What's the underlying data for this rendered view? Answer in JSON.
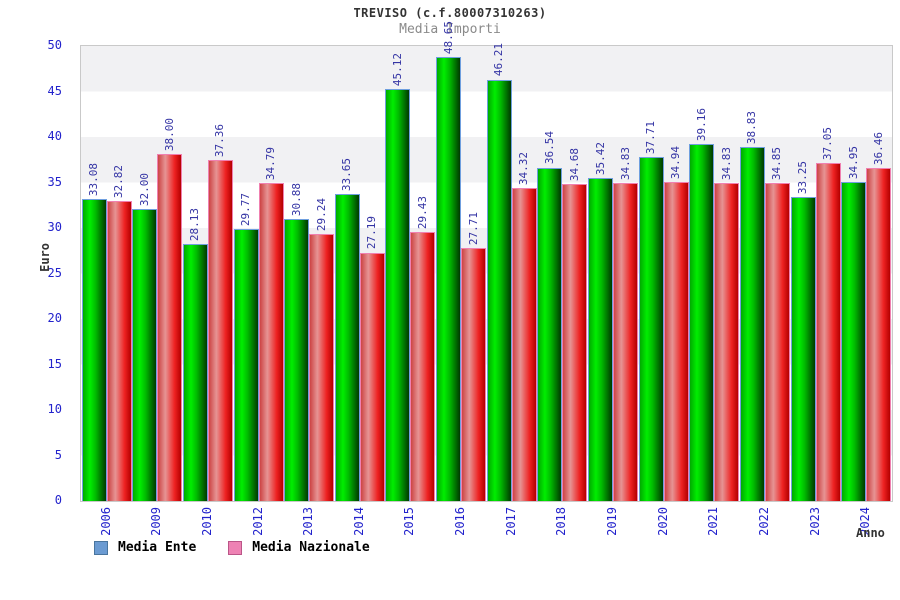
{
  "header": {
    "title": "TREVISO (c.f.80007310263)",
    "subtitle": "Media Importi"
  },
  "axes": {
    "y_label": "Euro",
    "x_label": "Anno",
    "y_ticks": [
      0,
      5,
      10,
      15,
      20,
      25,
      30,
      35,
      40,
      45,
      50
    ]
  },
  "legend": {
    "items": [
      {
        "label": "Media Ente",
        "swatch_fill": "#6b9bd2",
        "swatch_border": "#49759e"
      },
      {
        "label": "Media Nazionale",
        "swatch_fill": "#ee82b4",
        "swatch_border": "#bb5588"
      }
    ]
  },
  "colors": {
    "tick_label": "#2323cc",
    "value_label": "#3434a4",
    "band_gray": "#f1f1f3",
    "band_white": "#ffffff",
    "ente_border": "#6f9fdf",
    "naz_border": "#f080b0"
  },
  "chart_data": {
    "type": "bar",
    "title": "TREVISO (c.f.80007310263)",
    "subtitle": "Media Importi",
    "xlabel": "Anno",
    "ylabel": "Euro",
    "ylim": [
      0,
      50
    ],
    "grid": "horizontal-bands",
    "legend_position": "bottom-left",
    "categories": [
      "2006",
      "2009",
      "2010",
      "2012",
      "2013",
      "2014",
      "2015",
      "2016",
      "2017",
      "2018",
      "2019",
      "2020",
      "2021",
      "2022",
      "2023",
      "2024"
    ],
    "series": [
      {
        "name": "Media Ente",
        "style": "green-cylinder",
        "values": [
          33.08,
          32.0,
          28.13,
          29.77,
          30.88,
          33.65,
          45.12,
          48.65,
          46.21,
          36.54,
          35.42,
          37.71,
          39.16,
          38.83,
          33.25,
          34.95
        ]
      },
      {
        "name": "Media Nazionale",
        "style": "red-cylinder",
        "values": [
          32.82,
          38.0,
          37.36,
          34.79,
          29.24,
          27.19,
          29.43,
          27.71,
          34.32,
          34.68,
          34.83,
          34.94,
          34.83,
          34.85,
          37.05,
          36.46
        ]
      }
    ]
  }
}
